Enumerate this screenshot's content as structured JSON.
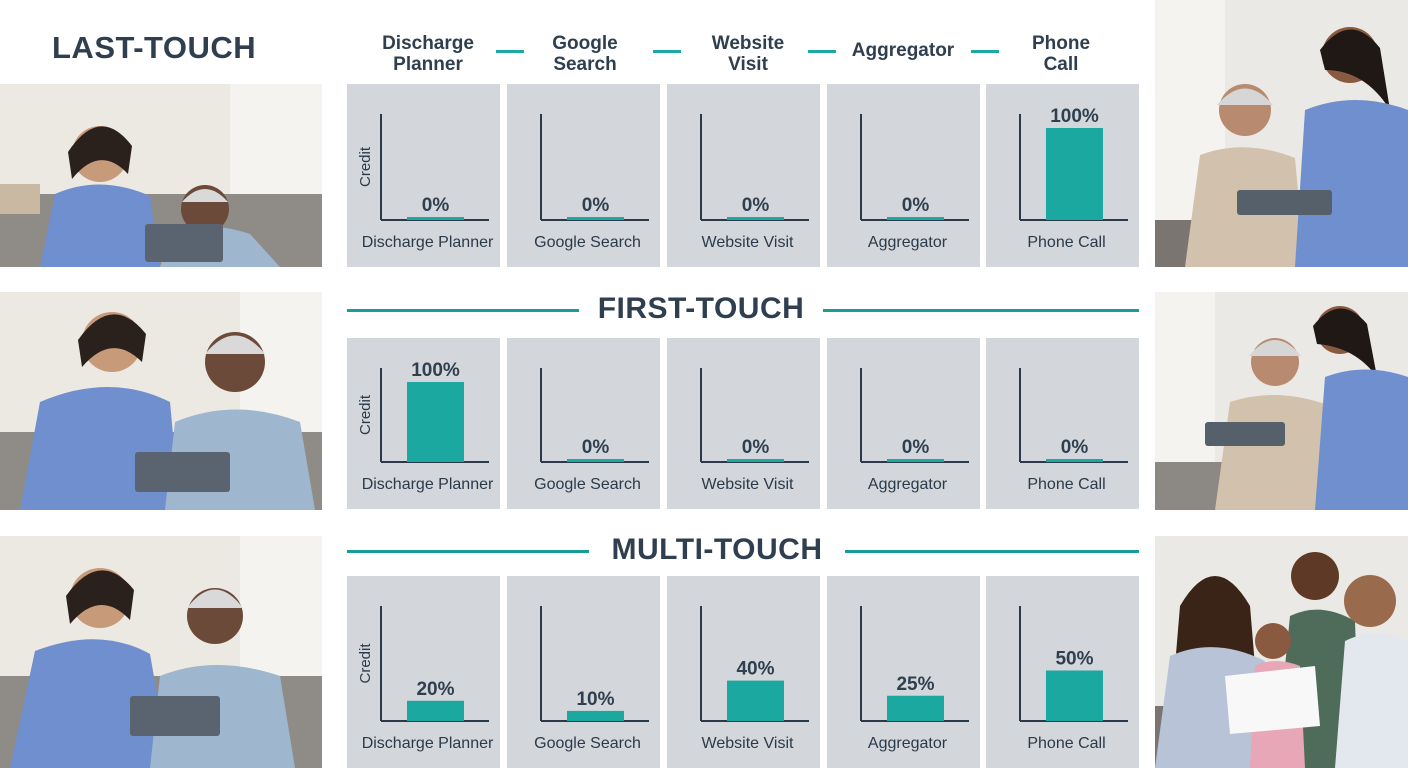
{
  "header": {
    "title": "LAST-TOUCH",
    "journey": [
      "Discharge Planner",
      "Google Search",
      "Website Visit",
      "Aggregator",
      "Phone Call"
    ],
    "journey_lines": [
      [
        "Discharge",
        "Planner"
      ],
      [
        "Google",
        "Search"
      ],
      [
        "Website",
        "Visit"
      ],
      [
        "Aggregator"
      ],
      [
        "Phone",
        "Call"
      ]
    ]
  },
  "colors": {
    "accent": "#1aa8a0",
    "panel": "#d3d6da",
    "text": "#2f3f4f"
  },
  "chart_data": [
    {
      "type": "bar",
      "title": "LAST-TOUCH",
      "ylabel": "Credit",
      "ylim": [
        0,
        100
      ],
      "categories": [
        "Discharge Planner",
        "Google Search",
        "Website Visit",
        "Aggregator",
        "Phone Call"
      ],
      "values": [
        0,
        0,
        0,
        0,
        100
      ],
      "value_labels": [
        "0%",
        "0%",
        "0%",
        "0%",
        "100%"
      ]
    },
    {
      "type": "bar",
      "title": "FIRST-TOUCH",
      "ylabel": "Credit",
      "ylim": [
        0,
        100
      ],
      "categories": [
        "Discharge Planner",
        "Google Search",
        "Website Visit",
        "Aggregator",
        "Phone Call"
      ],
      "values": [
        100,
        0,
        0,
        0,
        0
      ],
      "value_labels": [
        "100%",
        "0%",
        "0%",
        "0%",
        "0%"
      ]
    },
    {
      "type": "bar",
      "title": "MULTI-TOUCH",
      "ylabel": "Credit",
      "ylim": [
        0,
        100
      ],
      "categories": [
        "Discharge Planner",
        "Google Search",
        "Website Visit",
        "Aggregator",
        "Phone Call"
      ],
      "values": [
        20,
        10,
        40,
        25,
        50
      ],
      "value_labels": [
        "20%",
        "10%",
        "40%",
        "25%",
        "50%"
      ]
    }
  ]
}
